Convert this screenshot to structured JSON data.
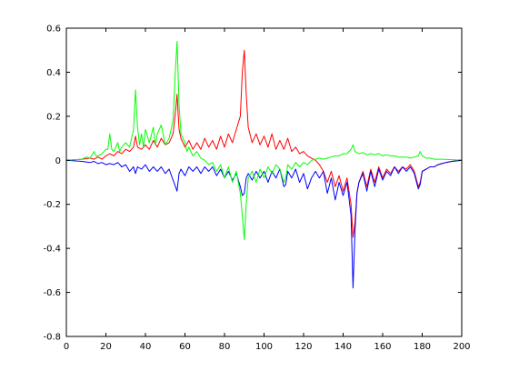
{
  "chart_data": {
    "type": "line",
    "title": "",
    "xlabel": "",
    "ylabel": "",
    "xlim": [
      0,
      200
    ],
    "ylim": [
      -0.8,
      0.6
    ],
    "grid": false,
    "legend": "none",
    "x_ticks": [
      "0",
      "20",
      "40",
      "60",
      "80",
      "100",
      "120",
      "140",
      "160",
      "180",
      "200"
    ],
    "y_ticks": [
      "-0.8",
      "-0.6",
      "-0.4",
      "-0.2",
      "0",
      "0.2",
      "0.4",
      "0.6"
    ],
    "series": [
      {
        "color": "#ff0000",
        "points": [
          [
            0,
            0
          ],
          [
            8,
            0.005
          ],
          [
            12,
            0.01
          ],
          [
            14,
            0.005
          ],
          [
            16,
            0.015
          ],
          [
            18,
            0.005
          ],
          [
            20,
            0.02
          ],
          [
            22,
            0.03
          ],
          [
            24,
            0.02
          ],
          [
            26,
            0.04
          ],
          [
            28,
            0.03
          ],
          [
            30,
            0.05
          ],
          [
            32,
            0.04
          ],
          [
            34,
            0.06
          ],
          [
            35,
            0.11
          ],
          [
            36,
            0.06
          ],
          [
            38,
            0.05
          ],
          [
            40,
            0.07
          ],
          [
            42,
            0.05
          ],
          [
            44,
            0.09
          ],
          [
            46,
            0.06
          ],
          [
            48,
            0.1
          ],
          [
            50,
            0.07
          ],
          [
            52,
            0.08
          ],
          [
            54,
            0.12
          ],
          [
            55,
            0.2
          ],
          [
            56,
            0.3
          ],
          [
            57,
            0.14
          ],
          [
            58,
            0.1
          ],
          [
            60,
            0.06
          ],
          [
            62,
            0.09
          ],
          [
            64,
            0.05
          ],
          [
            66,
            0.08
          ],
          [
            68,
            0.05
          ],
          [
            70,
            0.1
          ],
          [
            72,
            0.06
          ],
          [
            74,
            0.09
          ],
          [
            76,
            0.05
          ],
          [
            78,
            0.11
          ],
          [
            80,
            0.06
          ],
          [
            82,
            0.12
          ],
          [
            84,
            0.08
          ],
          [
            86,
            0.14
          ],
          [
            88,
            0.2
          ],
          [
            89,
            0.4
          ],
          [
            90,
            0.5
          ],
          [
            91,
            0.3
          ],
          [
            92,
            0.15
          ],
          [
            94,
            0.08
          ],
          [
            96,
            0.12
          ],
          [
            98,
            0.07
          ],
          [
            100,
            0.11
          ],
          [
            102,
            0.06
          ],
          [
            104,
            0.12
          ],
          [
            106,
            0.05
          ],
          [
            108,
            0.09
          ],
          [
            110,
            0.05
          ],
          [
            112,
            0.1
          ],
          [
            114,
            0.04
          ],
          [
            116,
            0.06
          ],
          [
            118,
            0.03
          ],
          [
            120,
            0.04
          ],
          [
            122,
            0.02
          ],
          [
            124,
            0.01
          ],
          [
            126,
            0
          ],
          [
            128,
            -0.02
          ],
          [
            130,
            -0.05
          ],
          [
            132,
            -0.1
          ],
          [
            134,
            -0.05
          ],
          [
            136,
            -0.12
          ],
          [
            138,
            -0.07
          ],
          [
            140,
            -0.14
          ],
          [
            142,
            -0.08
          ],
          [
            144,
            -0.2
          ],
          [
            145,
            -0.35
          ],
          [
            146,
            -0.28
          ],
          [
            147,
            -0.15
          ],
          [
            148,
            -0.1
          ],
          [
            150,
            -0.05
          ],
          [
            152,
            -0.12
          ],
          [
            154,
            -0.04
          ],
          [
            156,
            -0.1
          ],
          [
            158,
            -0.03
          ],
          [
            160,
            -0.08
          ],
          [
            162,
            -0.04
          ],
          [
            164,
            -0.06
          ],
          [
            166,
            -0.03
          ],
          [
            168,
            -0.05
          ],
          [
            170,
            -0.03
          ],
          [
            172,
            -0.04
          ],
          [
            174,
            -0.02
          ],
          [
            176,
            -0.05
          ],
          [
            178,
            -0.12
          ],
          [
            179,
            -0.1
          ],
          [
            180,
            -0.05
          ],
          [
            182,
            -0.04
          ],
          [
            184,
            -0.03
          ],
          [
            186,
            -0.03
          ],
          [
            188,
            -0.02
          ],
          [
            190,
            -0.015
          ],
          [
            192,
            -0.01
          ],
          [
            195,
            -0.005
          ],
          [
            200,
            0
          ]
        ]
      },
      {
        "color": "#0000ff",
        "points": [
          [
            0,
            0
          ],
          [
            8,
            -0.005
          ],
          [
            12,
            -0.01
          ],
          [
            14,
            -0.005
          ],
          [
            16,
            -0.015
          ],
          [
            18,
            -0.01
          ],
          [
            20,
            -0.02
          ],
          [
            22,
            -0.015
          ],
          [
            24,
            -0.02
          ],
          [
            26,
            -0.01
          ],
          [
            28,
            -0.03
          ],
          [
            30,
            -0.02
          ],
          [
            32,
            -0.05
          ],
          [
            34,
            -0.03
          ],
          [
            35,
            -0.06
          ],
          [
            36,
            -0.03
          ],
          [
            38,
            -0.04
          ],
          [
            40,
            -0.02
          ],
          [
            42,
            -0.05
          ],
          [
            44,
            -0.03
          ],
          [
            46,
            -0.05
          ],
          [
            48,
            -0.03
          ],
          [
            50,
            -0.06
          ],
          [
            52,
            -0.04
          ],
          [
            54,
            -0.09
          ],
          [
            56,
            -0.14
          ],
          [
            57,
            -0.06
          ],
          [
            58,
            -0.04
          ],
          [
            60,
            -0.07
          ],
          [
            62,
            -0.03
          ],
          [
            64,
            -0.05
          ],
          [
            66,
            -0.03
          ],
          [
            68,
            -0.06
          ],
          [
            70,
            -0.03
          ],
          [
            72,
            -0.05
          ],
          [
            74,
            -0.03
          ],
          [
            76,
            -0.07
          ],
          [
            78,
            -0.04
          ],
          [
            80,
            -0.08
          ],
          [
            82,
            -0.05
          ],
          [
            84,
            -0.09
          ],
          [
            86,
            -0.06
          ],
          [
            88,
            -0.12
          ],
          [
            89,
            -0.16
          ],
          [
            90,
            -0.15
          ],
          [
            91,
            -0.08
          ],
          [
            92,
            -0.06
          ],
          [
            94,
            -0.09
          ],
          [
            96,
            -0.05
          ],
          [
            98,
            -0.08
          ],
          [
            100,
            -0.05
          ],
          [
            102,
            -0.1
          ],
          [
            104,
            -0.05
          ],
          [
            106,
            -0.08
          ],
          [
            108,
            -0.04
          ],
          [
            110,
            -0.12
          ],
          [
            111,
            -0.11
          ],
          [
            112,
            -0.05
          ],
          [
            114,
            -0.08
          ],
          [
            116,
            -0.04
          ],
          [
            118,
            -0.1
          ],
          [
            120,
            -0.06
          ],
          [
            122,
            -0.13
          ],
          [
            124,
            -0.08
          ],
          [
            126,
            -0.05
          ],
          [
            128,
            -0.08
          ],
          [
            130,
            -0.05
          ],
          [
            132,
            -0.15
          ],
          [
            134,
            -0.08
          ],
          [
            136,
            -0.18
          ],
          [
            138,
            -0.1
          ],
          [
            140,
            -0.16
          ],
          [
            142,
            -0.1
          ],
          [
            144,
            -0.25
          ],
          [
            145,
            -0.58
          ],
          [
            146,
            -0.32
          ],
          [
            147,
            -0.15
          ],
          [
            148,
            -0.1
          ],
          [
            150,
            -0.06
          ],
          [
            152,
            -0.14
          ],
          [
            154,
            -0.05
          ],
          [
            156,
            -0.12
          ],
          [
            158,
            -0.04
          ],
          [
            160,
            -0.09
          ],
          [
            162,
            -0.05
          ],
          [
            164,
            -0.07
          ],
          [
            166,
            -0.03
          ],
          [
            168,
            -0.06
          ],
          [
            170,
            -0.03
          ],
          [
            172,
            -0.05
          ],
          [
            174,
            -0.03
          ],
          [
            176,
            -0.06
          ],
          [
            178,
            -0.13
          ],
          [
            179,
            -0.11
          ],
          [
            180,
            -0.05
          ],
          [
            182,
            -0.04
          ],
          [
            184,
            -0.03
          ],
          [
            186,
            -0.03
          ],
          [
            188,
            -0.02
          ],
          [
            190,
            -0.015
          ],
          [
            192,
            -0.01
          ],
          [
            195,
            -0.005
          ],
          [
            200,
            0
          ]
        ]
      },
      {
        "color": "#00ff00",
        "points": [
          [
            0,
            0
          ],
          [
            8,
            0.005
          ],
          [
            10,
            0.015
          ],
          [
            12,
            0.01
          ],
          [
            14,
            0.04
          ],
          [
            15,
            0.02
          ],
          [
            16,
            0.02
          ],
          [
            18,
            0.03
          ],
          [
            20,
            0.05
          ],
          [
            21,
            0.05
          ],
          [
            22,
            0.12
          ],
          [
            23,
            0.05
          ],
          [
            24,
            0.04
          ],
          [
            26,
            0.08
          ],
          [
            27,
            0.04
          ],
          [
            28,
            0.06
          ],
          [
            30,
            0.08
          ],
          [
            32,
            0.06
          ],
          [
            34,
            0.14
          ],
          [
            35,
            0.32
          ],
          [
            36,
            0.15
          ],
          [
            37,
            0.07
          ],
          [
            38,
            0.12
          ],
          [
            39,
            0.06
          ],
          [
            40,
            0.14
          ],
          [
            42,
            0.08
          ],
          [
            44,
            0.15
          ],
          [
            45,
            0.07
          ],
          [
            46,
            0.12
          ],
          [
            48,
            0.16
          ],
          [
            50,
            0.07
          ],
          [
            52,
            0.1
          ],
          [
            54,
            0.18
          ],
          [
            55,
            0.38
          ],
          [
            56,
            0.54
          ],
          [
            57,
            0.25
          ],
          [
            58,
            0.12
          ],
          [
            60,
            0.08
          ],
          [
            61,
            0.04
          ],
          [
            62,
            0.06
          ],
          [
            64,
            0.02
          ],
          [
            66,
            0.04
          ],
          [
            68,
            0.01
          ],
          [
            70,
            0
          ],
          [
            72,
            -0.02
          ],
          [
            74,
            -0.01
          ],
          [
            76,
            -0.05
          ],
          [
            78,
            -0.02
          ],
          [
            80,
            -0.08
          ],
          [
            82,
            -0.03
          ],
          [
            84,
            -0.1
          ],
          [
            86,
            -0.05
          ],
          [
            88,
            -0.15
          ],
          [
            89,
            -0.25
          ],
          [
            90,
            -0.36
          ],
          [
            91,
            -0.2
          ],
          [
            92,
            -0.08
          ],
          [
            94,
            -0.05
          ],
          [
            96,
            -0.1
          ],
          [
            98,
            -0.04
          ],
          [
            100,
            -0.08
          ],
          [
            102,
            -0.03
          ],
          [
            104,
            -0.06
          ],
          [
            106,
            -0.02
          ],
          [
            108,
            -0.04
          ],
          [
            110,
            -0.1
          ],
          [
            111,
            -0.08
          ],
          [
            112,
            -0.02
          ],
          [
            114,
            -0.04
          ],
          [
            116,
            -0.01
          ],
          [
            118,
            -0.03
          ],
          [
            120,
            -0.01
          ],
          [
            122,
            -0.02
          ],
          [
            124,
            0
          ],
          [
            126,
            0.005
          ],
          [
            128,
            0.01
          ],
          [
            130,
            0.005
          ],
          [
            132,
            0.01
          ],
          [
            134,
            0.015
          ],
          [
            136,
            0.02
          ],
          [
            138,
            0.02
          ],
          [
            140,
            0.03
          ],
          [
            142,
            0.03
          ],
          [
            144,
            0.05
          ],
          [
            145,
            0.07
          ],
          [
            146,
            0.04
          ],
          [
            148,
            0.03
          ],
          [
            150,
            0.035
          ],
          [
            152,
            0.025
          ],
          [
            154,
            0.03
          ],
          [
            156,
            0.025
          ],
          [
            158,
            0.03
          ],
          [
            160,
            0.02
          ],
          [
            162,
            0.025
          ],
          [
            164,
            0.02
          ],
          [
            166,
            0.02
          ],
          [
            168,
            0.015
          ],
          [
            170,
            0.015
          ],
          [
            172,
            0.015
          ],
          [
            174,
            0.01
          ],
          [
            176,
            0.015
          ],
          [
            178,
            0.02
          ],
          [
            179,
            0.04
          ],
          [
            180,
            0.02
          ],
          [
            182,
            0.01
          ],
          [
            184,
            0.01
          ],
          [
            186,
            0.005
          ],
          [
            190,
            0.005
          ],
          [
            195,
            0.003
          ],
          [
            200,
            0
          ]
        ]
      }
    ]
  }
}
